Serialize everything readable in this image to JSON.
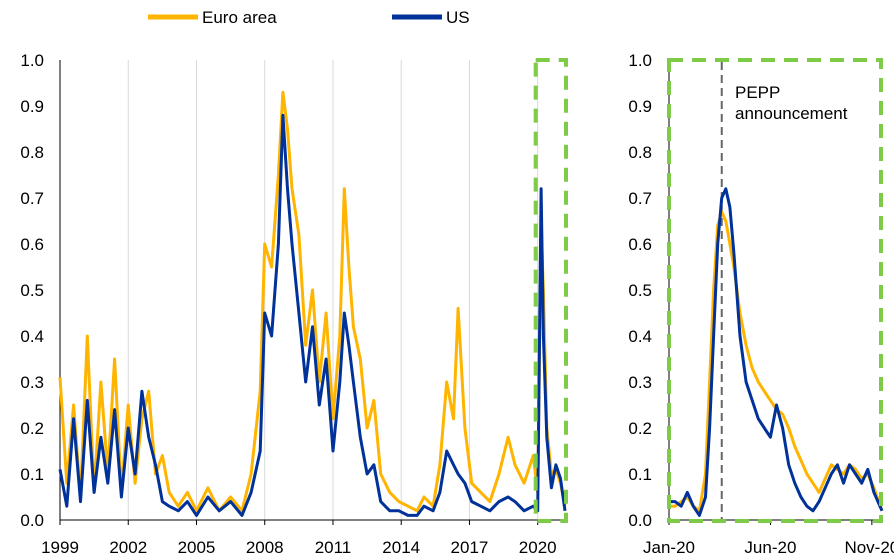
{
  "legend": [
    {
      "name": "Euro area",
      "color": "#FFB400"
    },
    {
      "name": "US",
      "color": "#003299"
    }
  ],
  "highlight_color": "#7DCB47",
  "chart_data": [
    {
      "type": "line",
      "title": "",
      "xlabel": "",
      "ylabel": "",
      "x_ticks": [
        "1999",
        "2002",
        "2005",
        "2008",
        "2011",
        "2014",
        "2017",
        "2020"
      ],
      "xlim": [
        1999,
        2021.2
      ],
      "ylim": [
        0,
        1.0
      ],
      "y_ticks": [
        "0.0",
        "0.1",
        "0.2",
        "0.3",
        "0.4",
        "0.5",
        "0.6",
        "0.7",
        "0.8",
        "0.9",
        "1.0"
      ],
      "grid": "vertical",
      "highlight_range": [
        2020.0,
        2021.2
      ],
      "series": [
        {
          "name": "Euro area",
          "x": [
            1999.0,
            1999.3,
            1999.6,
            1999.9,
            2000.2,
            2000.5,
            2000.8,
            2001.1,
            2001.4,
            2001.7,
            2002.0,
            2002.3,
            2002.6,
            2002.9,
            2003.2,
            2003.5,
            2003.8,
            2004.2,
            2004.6,
            2005.0,
            2005.5,
            2006.0,
            2006.5,
            2007.0,
            2007.4,
            2007.8,
            2008.0,
            2008.3,
            2008.6,
            2008.8,
            2009.0,
            2009.2,
            2009.5,
            2009.8,
            2010.1,
            2010.4,
            2010.7,
            2011.0,
            2011.3,
            2011.5,
            2011.7,
            2011.9,
            2012.2,
            2012.5,
            2012.8,
            2013.1,
            2013.5,
            2013.9,
            2014.3,
            2014.7,
            2015.0,
            2015.4,
            2015.7,
            2016.0,
            2016.3,
            2016.5,
            2016.8,
            2017.1,
            2017.5,
            2017.9,
            2018.3,
            2018.7,
            2019.0,
            2019.4,
            2019.8,
            2020.0,
            2020.15,
            2020.25,
            2020.4,
            2020.6,
            2020.8,
            2021.0,
            2021.2
          ],
          "y": [
            0.31,
            0.08,
            0.25,
            0.05,
            0.4,
            0.06,
            0.3,
            0.1,
            0.35,
            0.06,
            0.25,
            0.08,
            0.22,
            0.28,
            0.1,
            0.14,
            0.06,
            0.03,
            0.06,
            0.02,
            0.07,
            0.02,
            0.05,
            0.02,
            0.1,
            0.28,
            0.6,
            0.55,
            0.75,
            0.93,
            0.85,
            0.72,
            0.62,
            0.38,
            0.5,
            0.3,
            0.45,
            0.22,
            0.4,
            0.72,
            0.55,
            0.42,
            0.35,
            0.2,
            0.26,
            0.1,
            0.06,
            0.04,
            0.03,
            0.02,
            0.05,
            0.03,
            0.12,
            0.3,
            0.22,
            0.46,
            0.2,
            0.08,
            0.06,
            0.04,
            0.1,
            0.18,
            0.12,
            0.08,
            0.14,
            0.06,
            0.64,
            0.5,
            0.2,
            0.1,
            0.11,
            0.08,
            0.03
          ]
        },
        {
          "name": "US",
          "x": [
            1999.0,
            1999.3,
            1999.6,
            1999.9,
            2000.2,
            2000.5,
            2000.8,
            2001.1,
            2001.4,
            2001.7,
            2002.0,
            2002.3,
            2002.6,
            2002.9,
            2003.2,
            2003.5,
            2003.8,
            2004.2,
            2004.6,
            2005.0,
            2005.5,
            2006.0,
            2006.5,
            2007.0,
            2007.4,
            2007.8,
            2008.0,
            2008.3,
            2008.6,
            2008.8,
            2009.0,
            2009.2,
            2009.5,
            2009.8,
            2010.1,
            2010.4,
            2010.7,
            2011.0,
            2011.3,
            2011.5,
            2011.7,
            2011.9,
            2012.2,
            2012.5,
            2012.8,
            2013.1,
            2013.5,
            2013.9,
            2014.3,
            2014.7,
            2015.0,
            2015.4,
            2015.7,
            2016.0,
            2016.3,
            2016.5,
            2016.8,
            2017.1,
            2017.5,
            2017.9,
            2018.3,
            2018.7,
            2019.0,
            2019.4,
            2019.8,
            2020.0,
            2020.15,
            2020.25,
            2020.4,
            2020.6,
            2020.8,
            2021.0,
            2021.2
          ],
          "y": [
            0.11,
            0.03,
            0.22,
            0.04,
            0.26,
            0.06,
            0.18,
            0.08,
            0.24,
            0.05,
            0.2,
            0.1,
            0.28,
            0.18,
            0.12,
            0.04,
            0.03,
            0.02,
            0.04,
            0.01,
            0.05,
            0.02,
            0.04,
            0.01,
            0.06,
            0.15,
            0.45,
            0.4,
            0.6,
            0.88,
            0.72,
            0.6,
            0.45,
            0.3,
            0.42,
            0.25,
            0.35,
            0.15,
            0.3,
            0.45,
            0.38,
            0.3,
            0.18,
            0.1,
            0.12,
            0.04,
            0.02,
            0.02,
            0.01,
            0.01,
            0.03,
            0.02,
            0.06,
            0.15,
            0.12,
            0.1,
            0.08,
            0.04,
            0.03,
            0.02,
            0.04,
            0.05,
            0.04,
            0.02,
            0.03,
            0.02,
            0.72,
            0.4,
            0.18,
            0.07,
            0.12,
            0.09,
            0.02
          ]
        }
      ]
    },
    {
      "type": "line",
      "title": "",
      "xlabel": "",
      "ylabel": "",
      "x_ticks": [
        "Jan-20",
        "Jun-20",
        "Nov-20"
      ],
      "x_tick_positions": [
        0,
        5,
        10
      ],
      "xlim": [
        0,
        10.5
      ],
      "ylim": [
        0,
        1.0
      ],
      "y_ticks": [
        "0.0",
        "0.1",
        "0.2",
        "0.3",
        "0.4",
        "0.5",
        "0.6",
        "0.7",
        "0.8",
        "0.9",
        "1.0"
      ],
      "annotation": {
        "label_lines": [
          "PEPP",
          "announcement"
        ],
        "x": 2.6
      },
      "series": [
        {
          "name": "Euro area",
          "x": [
            0,
            0.3,
            0.6,
            0.9,
            1.2,
            1.5,
            1.8,
            2.0,
            2.2,
            2.4,
            2.6,
            2.8,
            3.0,
            3.2,
            3.5,
            3.8,
            4.1,
            4.4,
            4.7,
            5.0,
            5.3,
            5.6,
            5.9,
            6.2,
            6.5,
            6.8,
            7.1,
            7.4,
            7.7,
            8.0,
            8.3,
            8.6,
            8.9,
            9.2,
            9.5,
            9.8,
            10.1,
            10.5
          ],
          "y": [
            0.03,
            0.03,
            0.04,
            0.05,
            0.03,
            0.02,
            0.1,
            0.3,
            0.5,
            0.64,
            0.67,
            0.65,
            0.6,
            0.55,
            0.45,
            0.38,
            0.33,
            0.3,
            0.28,
            0.26,
            0.24,
            0.23,
            0.2,
            0.16,
            0.13,
            0.1,
            0.08,
            0.06,
            0.09,
            0.12,
            0.11,
            0.1,
            0.12,
            0.11,
            0.09,
            0.1,
            0.07,
            0.02
          ]
        },
        {
          "name": "US",
          "x": [
            0,
            0.3,
            0.6,
            0.9,
            1.2,
            1.5,
            1.8,
            2.0,
            2.2,
            2.4,
            2.6,
            2.8,
            3.0,
            3.2,
            3.5,
            3.8,
            4.1,
            4.4,
            4.7,
            5.0,
            5.3,
            5.6,
            5.9,
            6.2,
            6.5,
            6.8,
            7.1,
            7.4,
            7.7,
            8.0,
            8.3,
            8.6,
            8.9,
            9.2,
            9.5,
            9.8,
            10.1,
            10.5
          ],
          "y": [
            0.04,
            0.04,
            0.03,
            0.06,
            0.03,
            0.01,
            0.05,
            0.2,
            0.4,
            0.6,
            0.7,
            0.72,
            0.68,
            0.58,
            0.4,
            0.3,
            0.26,
            0.22,
            0.2,
            0.18,
            0.25,
            0.2,
            0.12,
            0.08,
            0.05,
            0.03,
            0.02,
            0.04,
            0.07,
            0.1,
            0.12,
            0.08,
            0.12,
            0.1,
            0.08,
            0.11,
            0.06,
            0.02
          ]
        }
      ]
    }
  ]
}
